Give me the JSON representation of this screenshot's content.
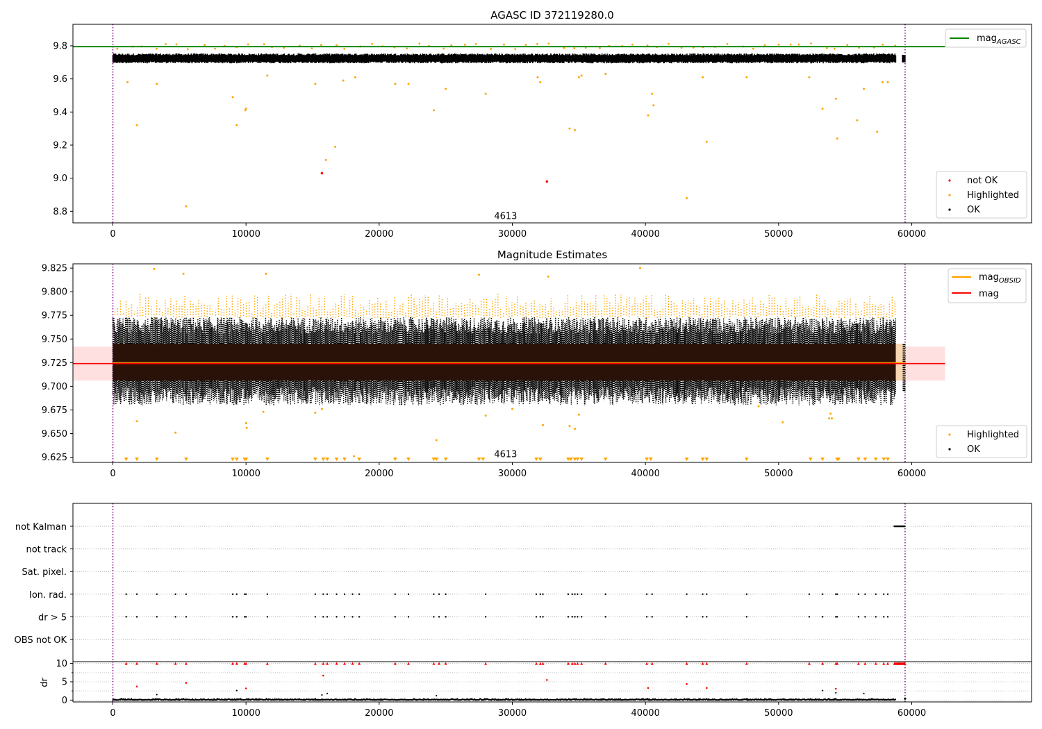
{
  "chart_data": [
    {
      "type": "scatter",
      "id": "panel1",
      "title": "AGASC ID 372119280.0",
      "xlim": [
        -3000,
        69000
      ],
      "ylim": [
        8.73,
        9.93
      ],
      "xticks": [
        0,
        10000,
        20000,
        30000,
        40000,
        50000,
        60000
      ],
      "yticks": [
        8.8,
        9.0,
        9.2,
        9.4,
        9.6,
        9.8
      ],
      "ytick_decimals": 1,
      "vlines": [
        0,
        59500
      ],
      "annotations": [
        {
          "text": "4613",
          "x": 29500,
          "y": 8.77
        }
      ],
      "hline": {
        "name": "mag",
        "subscript": "AGASC",
        "y": 9.795,
        "x_range": [
          -3000,
          62500
        ],
        "color": "#008000"
      },
      "band": {
        "center": 9.724,
        "low": 9.706,
        "high": 9.742,
        "x_range": [
          0,
          58800
        ]
      },
      "series_labels": [
        "not OK",
        "Highlighted",
        "OK"
      ],
      "series_colors": [
        "#ff0000",
        "#ffa500",
        "#000000"
      ],
      "not_ok_points": [
        [
          15700,
          9.03
        ],
        [
          32600,
          8.98
        ]
      ],
      "highlighted_points": [
        [
          1100,
          9.58
        ],
        [
          1800,
          9.32
        ],
        [
          3300,
          9.57
        ],
        [
          5500,
          8.83
        ],
        [
          9000,
          9.49
        ],
        [
          9300,
          9.32
        ],
        [
          9950,
          9.41
        ],
        [
          10000,
          9.42
        ],
        [
          11600,
          9.62
        ],
        [
          15200,
          9.57
        ],
        [
          16000,
          9.11
        ],
        [
          16700,
          9.19
        ],
        [
          17300,
          9.59
        ],
        [
          18200,
          9.61
        ],
        [
          21200,
          9.57
        ],
        [
          22200,
          9.57
        ],
        [
          24100,
          9.41
        ],
        [
          25000,
          9.54
        ],
        [
          28000,
          9.51
        ],
        [
          31900,
          9.61
        ],
        [
          32100,
          9.58
        ],
        [
          34300,
          9.3
        ],
        [
          34700,
          9.29
        ],
        [
          35000,
          9.61
        ],
        [
          35200,
          9.62
        ],
        [
          37000,
          9.63
        ],
        [
          40200,
          9.38
        ],
        [
          40500,
          9.51
        ],
        [
          40600,
          9.44
        ],
        [
          43100,
          8.88
        ],
        [
          44300,
          9.61
        ],
        [
          44600,
          9.22
        ],
        [
          47600,
          9.61
        ],
        [
          52300,
          9.61
        ],
        [
          53300,
          9.42
        ],
        [
          54300,
          9.48
        ],
        [
          54400,
          9.24
        ],
        [
          55900,
          9.35
        ],
        [
          56400,
          9.54
        ],
        [
          57400,
          9.28
        ],
        [
          57800,
          9.58
        ],
        [
          58200,
          9.58
        ]
      ],
      "legend_top": {
        "entries": [
          "mag"
        ],
        "subscripts": [
          "AGASC"
        ]
      },
      "legend_bottom": {
        "entries": [
          "not OK",
          "Highlighted",
          "OK"
        ]
      }
    },
    {
      "type": "scatter",
      "id": "panel2",
      "title": "Magnitude Estimates",
      "xlim": [
        -3000,
        69000
      ],
      "ylim": [
        9.6195,
        9.8295
      ],
      "xticks": [
        0,
        10000,
        20000,
        30000,
        40000,
        50000,
        60000
      ],
      "yticks": [
        9.625,
        9.65,
        9.675,
        9.7,
        9.725,
        9.75,
        9.775,
        9.8,
        9.825
      ],
      "ytick_decimals": 3,
      "vlines": [
        0,
        59500
      ],
      "annotations": [
        {
          "text": "4613",
          "x": 29500,
          "y": 9.628
        }
      ],
      "obsid_line": {
        "name": "mag",
        "subscript": "OBSID",
        "y": 9.7245,
        "x_range": [
          0,
          59500
        ],
        "color": "#ffa500"
      },
      "mag_line": {
        "name": "mag",
        "y": 9.724,
        "x_range": [
          -3000,
          62500
        ],
        "color": "#ff0000"
      },
      "mag_band": {
        "low": 9.706,
        "high": 9.742,
        "x_range": [
          -3000,
          62500
        ]
      },
      "data_band": {
        "low": 9.706,
        "high": 9.745,
        "x_range": [
          0,
          58800
        ]
      },
      "lower_markers_x": [
        1000,
        1800,
        3300,
        5500,
        9000,
        9300,
        9900,
        10000,
        11600,
        15200,
        15800,
        16100,
        16800,
        17400,
        18500,
        21200,
        22200,
        24100,
        24300,
        25000,
        27500,
        27800,
        31800,
        32100,
        34200,
        34400,
        34700,
        34900,
        35200,
        37000,
        40100,
        40400,
        43100,
        44300,
        44600,
        47600,
        52400,
        53300,
        54400,
        54500,
        56000,
        56500,
        57300,
        57900,
        58200
      ],
      "outliers_highlighted": [
        [
          1800,
          9.663
        ],
        [
          4700,
          9.651
        ],
        [
          10000,
          9.661
        ],
        [
          10050,
          9.656
        ],
        [
          24300,
          9.643
        ],
        [
          11300,
          9.673
        ],
        [
          15200,
          9.672
        ],
        [
          15700,
          9.676
        ],
        [
          18100,
          9.626
        ],
        [
          28000,
          9.669
        ],
        [
          30000,
          9.676
        ],
        [
          32300,
          9.659
        ],
        [
          34300,
          9.658
        ],
        [
          34700,
          9.655
        ],
        [
          35000,
          9.67
        ],
        [
          50300,
          9.662
        ],
        [
          53800,
          9.666
        ],
        [
          53900,
          9.671
        ],
        [
          54000,
          9.666
        ],
        [
          48500,
          9.679
        ],
        [
          39600,
          9.825
        ],
        [
          3100,
          9.824
        ],
        [
          5300,
          9.819
        ],
        [
          11500,
          9.819
        ],
        [
          27500,
          9.818
        ],
        [
          32700,
          9.816
        ]
      ],
      "legend_top": {
        "entries": [
          "mag",
          "mag"
        ],
        "subscripts": [
          "OBSID",
          ""
        ]
      },
      "legend_bottom": {
        "entries": [
          "Highlighted",
          "OK"
        ]
      }
    },
    {
      "type": "scatter",
      "id": "panel3",
      "xlim": [
        -3000,
        69000
      ],
      "xticks": [
        0,
        10000,
        20000,
        30000,
        40000,
        50000,
        60000
      ],
      "vlines": [
        0,
        59500
      ],
      "flag_labels": [
        "not Kalman",
        "not track",
        "Sat. pixel.",
        "Ion. rad.",
        "dr > 5",
        "OBS not OK"
      ],
      "not_kalman_x_range": [
        58700,
        59500
      ],
      "flag_events_x": [
        1000,
        1800,
        3300,
        4700,
        5500,
        9000,
        9300,
        9900,
        10000,
        11600,
        15200,
        15800,
        16100,
        16800,
        17400,
        18000,
        18500,
        21200,
        22200,
        24100,
        24500,
        25000,
        28000,
        31800,
        32100,
        32300,
        34200,
        34500,
        34700,
        34900,
        35200,
        37000,
        40100,
        40500,
        43100,
        44300,
        44600,
        47600,
        52300,
        53300,
        54300,
        54400,
        56000,
        56500,
        57300,
        57900,
        58200
      ],
      "dr_ylabel": "dr",
      "dr_ylim": [
        -0.5,
        10.5
      ],
      "dr_yticks": [
        0,
        5,
        10
      ],
      "dr_red_points": [
        [
          1800,
          3.7
        ],
        [
          5500,
          4.7
        ],
        [
          15800,
          6.7
        ],
        [
          32600,
          5.5
        ],
        [
          40200,
          3.3
        ],
        [
          43100,
          4.4
        ],
        [
          44600,
          3.3
        ],
        [
          10000,
          3.2
        ],
        [
          54300,
          3.1
        ]
      ],
      "dr_black_points": [
        [
          9300,
          2.6
        ],
        [
          15700,
          1.4
        ],
        [
          16100,
          1.8
        ],
        [
          24300,
          1.2
        ],
        [
          53300,
          2.6
        ],
        [
          54300,
          2.0
        ],
        [
          56400,
          1.8
        ],
        [
          3300,
          1.5
        ]
      ]
    }
  ]
}
